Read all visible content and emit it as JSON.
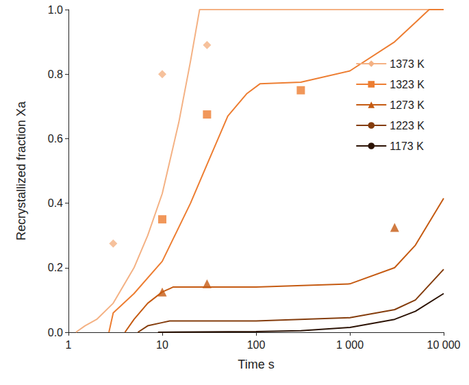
{
  "chart_data": {
    "type": "line",
    "x_label": "Time s",
    "y_label": "Recrystallized fraction Xa",
    "log": "x",
    "grid": false,
    "legend": "right",
    "xlim": [
      1,
      10000
    ],
    "xticks": [
      1,
      10,
      100,
      {
        "value": 1000,
        "label": "1 000"
      },
      {
        "value": 10000,
        "label": "10 000"
      }
    ],
    "ylim": [
      0,
      1
    ],
    "yticks": [
      {
        "value": 0,
        "label": "0.0"
      },
      {
        "value": 0.2,
        "label": "0.2"
      },
      {
        "value": 0.4,
        "label": "0.4"
      },
      {
        "value": 0.6,
        "label": "0.6"
      },
      {
        "value": 0.8,
        "label": "0.8"
      },
      {
        "value": 1,
        "label": "1.0"
      }
    ],
    "series": [
      {
        "name": "1373 K",
        "color": "#f4b183",
        "marker": "diamond",
        "x": [
          1.2,
          1.5,
          2,
          3,
          5,
          7,
          10,
          15,
          20,
          25,
          10000
        ],
        "values": [
          0,
          0.02,
          0.04,
          0.09,
          0.2,
          0.3,
          0.43,
          0.65,
          0.84,
          1.0,
          1.0
        ],
        "measured": {
          "x": [
            3,
            10,
            30
          ],
          "values": [
            0.275,
            0.8,
            0.89
          ]
        }
      },
      {
        "name": "1323 K",
        "color": "#ed7d31",
        "marker": "square",
        "x": [
          2.7,
          3,
          5,
          10,
          20,
          30,
          50,
          80,
          110,
          300,
          1000,
          3000,
          5000,
          7000,
          10000
        ],
        "values": [
          0,
          0.06,
          0.12,
          0.22,
          0.4,
          0.52,
          0.67,
          0.74,
          0.77,
          0.775,
          0.81,
          0.9,
          0.96,
          1.0,
          1.0
        ],
        "measured": {
          "x": [
            10,
            30,
            300
          ],
          "values": [
            0.35,
            0.675,
            0.75
          ]
        }
      },
      {
        "name": "1273 K",
        "color": "#c55a11",
        "marker": "triangle",
        "x": [
          4,
          5,
          7,
          10,
          12,
          13,
          100,
          1000,
          3000,
          5000,
          10000
        ],
        "values": [
          0,
          0.04,
          0.09,
          0.125,
          0.135,
          0.14,
          0.14,
          0.15,
          0.2,
          0.27,
          0.415
        ],
        "measured": {
          "x": [
            10,
            30,
            3000
          ],
          "values": [
            0.125,
            0.15,
            0.325
          ]
        }
      },
      {
        "name": "1223 K",
        "color": "#843c0c",
        "x": [
          5.5,
          7,
          10,
          12,
          100,
          1000,
          3000,
          5000,
          10000
        ],
        "values": [
          0,
          0.02,
          0.03,
          0.035,
          0.035,
          0.045,
          0.07,
          0.1,
          0.195
        ]
      },
      {
        "name": "1173 K",
        "color": "#2b1204",
        "x": [
          9,
          100,
          300,
          1000,
          3000,
          5000,
          10000
        ],
        "values": [
          0,
          0.002,
          0.005,
          0.015,
          0.04,
          0.065,
          0.12
        ]
      }
    ]
  }
}
